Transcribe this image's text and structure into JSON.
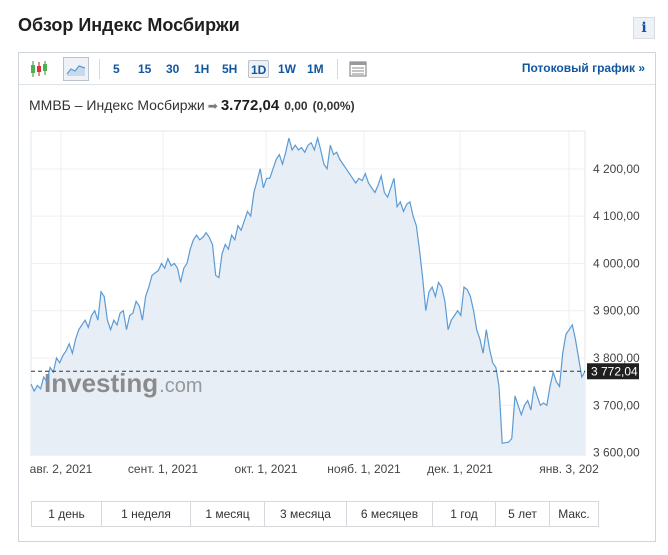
{
  "header": {
    "title": "Обзор Индекс Мосбиржи",
    "info_label": "i"
  },
  "toolbar": {
    "chart_type_icons": [
      "candlestick-chart-icon",
      "area-chart-icon"
    ],
    "timeframes": [
      "5",
      "15",
      "30",
      "1H",
      "5H",
      "1D",
      "1W",
      "1M"
    ],
    "active_timeframe": "1D",
    "table_icon": "table-view-icon",
    "stream_link": "Потоковый график",
    "stream_link_arrow": "»"
  },
  "quote": {
    "name": "ММВБ – Индекс Мосбиржи",
    "arrow": "➡",
    "price": "3.772,04",
    "change": "0,00",
    "change_pct": "(0,00%)"
  },
  "watermark": {
    "brand": "Investing",
    "suffix": ".com"
  },
  "periods": [
    "1 день",
    "1 неделя",
    "1 месяц",
    "3 месяца",
    "6 месяцев",
    "1 год",
    "5 лет",
    "Макс."
  ],
  "colors": {
    "line": "#5b9bd5",
    "fill": "#e8eef5",
    "accent": "#1256a0",
    "price_tag_bg": "#1f1f1f"
  },
  "chart_data": {
    "type": "area",
    "title": "",
    "xlabel": "",
    "ylabel": "",
    "x_ticks": [
      "авг. 2, 2021",
      "сент. 1, 2021",
      "окт. 1, 2021",
      "нояб. 1, 2021",
      "дек. 1, 2021",
      "янв. 3, 202"
    ],
    "y_ticks": [
      "4 200,00",
      "4 100,00",
      "4 000,00",
      "3 900,00",
      "3 800,00",
      "3 700,00",
      "3 600,00"
    ],
    "y_tick_values": [
      4200,
      4100,
      4000,
      3900,
      3800,
      3700,
      3600
    ],
    "ylim": [
      3595,
      4280
    ],
    "grid": true,
    "last_price_label": "3 772,04",
    "last_price": 3772.04,
    "series": [
      {
        "values": [
          3745,
          3730,
          3742,
          3735,
          3760,
          3750,
          3780,
          3770,
          3800,
          3790,
          3805,
          3815,
          3830,
          3810,
          3840,
          3860,
          3870,
          3880,
          3865,
          3890,
          3900,
          3880,
          3940,
          3930,
          3880,
          3860,
          3880,
          3870,
          3895,
          3900,
          3860,
          3890,
          3895,
          3920,
          3910,
          3880,
          3930,
          3950,
          3975,
          3980,
          3985,
          4000,
          3990,
          4010,
          3995,
          4000,
          3990,
          3960,
          3990,
          4000,
          4030,
          4050,
          4060,
          4050,
          4055,
          4065,
          4055,
          4040,
          3975,
          3970,
          4020,
          4040,
          4030,
          4060,
          4050,
          4080,
          4070,
          4090,
          4110,
          4100,
          4150,
          4175,
          4200,
          4160,
          4180,
          4180,
          4200,
          4220,
          4230,
          4210,
          4235,
          4265,
          4240,
          4250,
          4240,
          4245,
          4235,
          4250,
          4255,
          4240,
          4265,
          4240,
          4210,
          4200,
          4250,
          4230,
          4235,
          4220,
          4210,
          4200,
          4190,
          4180,
          4170,
          4180,
          4175,
          4190,
          4170,
          4160,
          4150,
          4165,
          4185,
          4150,
          4140,
          4160,
          4180,
          4120,
          4130,
          4110,
          4125,
          4130,
          4100,
          4080,
          4030,
          3970,
          3900,
          3940,
          3950,
          3930,
          3960,
          3950,
          3920,
          3860,
          3880,
          3890,
          3900,
          3890,
          3950,
          3945,
          3930,
          3900,
          3860,
          3840,
          3810,
          3860,
          3820,
          3790,
          3780,
          3740,
          3620,
          3621,
          3622,
          3630,
          3720,
          3700,
          3680,
          3700,
          3710,
          3690,
          3740,
          3720,
          3700,
          3705,
          3700,
          3740,
          3770,
          3750,
          3740,
          3810,
          3850,
          3860,
          3870,
          3840,
          3800,
          3760,
          3772.04
        ]
      }
    ]
  }
}
